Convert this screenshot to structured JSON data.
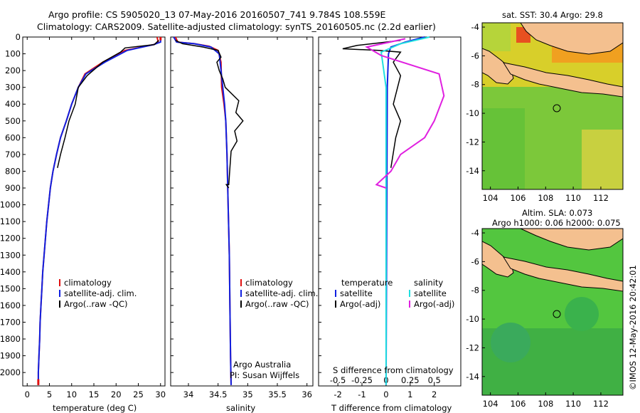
{
  "title": {
    "line1": "Argo profile: CS 5905020_13 07-May-2016 20160507_741 9.784S 108.559E",
    "line2": "Climatology: CARS2009. Satellite-adjusted climatology: synTS_20160505.nc (2.2d earlier)"
  },
  "colors": {
    "climatology": "#e01010",
    "satellite": "#1020e0",
    "argo": "#000000",
    "satellite_s": "#20e0e0",
    "argo_s": "#e020e0"
  },
  "chart_data": [
    {
      "type": "line",
      "panel": "temperature",
      "xlabel": "temperature (deg C)",
      "ylabel": "",
      "xlim": [
        -1,
        31
      ],
      "ylim": [
        2080,
        0
      ],
      "xticks": [
        0,
        5,
        10,
        15,
        20,
        25,
        30
      ],
      "yticks": [
        0,
        100,
        200,
        300,
        400,
        500,
        600,
        700,
        800,
        900,
        1000,
        1100,
        1200,
        1300,
        1400,
        1500,
        1600,
        1700,
        1800,
        1900,
        2000
      ],
      "legend": [
        "climatology",
        "satellite-adj. clim.",
        "Argo(..raw -QC)"
      ],
      "legend_position": "bottom-center",
      "series": [
        {
          "name": "climatology",
          "color": "#e01010",
          "points": [
            [
              29.2,
              0
            ],
            [
              29.5,
              30
            ],
            [
              28.5,
              45
            ],
            [
              22,
              80
            ],
            [
              17,
              150
            ],
            [
              13,
              220
            ],
            [
              11.5,
              300
            ],
            [
              10,
              400
            ],
            [
              8.8,
              500
            ],
            [
              7.5,
              600
            ],
            [
              6.6,
              700
            ],
            [
              5.8,
              800
            ],
            [
              5.2,
              900
            ],
            [
              4.8,
              1000
            ],
            [
              4.4,
              1100
            ],
            [
              4.1,
              1200
            ],
            [
              3.8,
              1300
            ],
            [
              3.5,
              1400
            ],
            [
              3.3,
              1500
            ],
            [
              3.1,
              1600
            ],
            [
              2.9,
              1700
            ],
            [
              2.8,
              1800
            ],
            [
              2.65,
              1900
            ],
            [
              2.5,
              2000
            ],
            [
              2.5,
              2075
            ]
          ]
        },
        {
          "name": "satellite-adj. clim.",
          "color": "#1020e0",
          "points": [
            [
              30,
              0
            ],
            [
              30,
              30
            ],
            [
              28.5,
              45
            ],
            [
              22.5,
              80
            ],
            [
              17.5,
              150
            ],
            [
              13.2,
              220
            ],
            [
              11.5,
              300
            ],
            [
              10,
              400
            ],
            [
              8.8,
              500
            ],
            [
              7.5,
              600
            ],
            [
              6.6,
              700
            ],
            [
              5.8,
              800
            ],
            [
              5.2,
              900
            ],
            [
              4.8,
              1000
            ],
            [
              4.4,
              1100
            ],
            [
              4.1,
              1200
            ],
            [
              3.8,
              1300
            ],
            [
              3.5,
              1400
            ],
            [
              3.3,
              1500
            ],
            [
              3.1,
              1600
            ],
            [
              2.9,
              1700
            ],
            [
              2.8,
              1800
            ],
            [
              2.65,
              1900
            ],
            [
              2.5,
              2000
            ],
            [
              2.5,
              2075
            ]
          ]
        },
        {
          "name": "Argo(..raw -QC)",
          "color": "#000000",
          "points": [
            [
              29.6,
              20
            ],
            [
              28.6,
              45
            ],
            [
              22,
              65
            ],
            [
              21,
              90
            ],
            [
              17,
              150
            ],
            [
              13.5,
              230
            ],
            [
              11.5,
              300
            ],
            [
              10.8,
              400
            ],
            [
              9.4,
              500
            ],
            [
              8.5,
              600
            ],
            [
              7.5,
              700
            ],
            [
              6.8,
              780
            ]
          ]
        }
      ]
    },
    {
      "type": "line",
      "panel": "salinity",
      "xlabel": "salinity",
      "ylabel": "",
      "xlim": [
        33.7,
        36.1
      ],
      "ylim": [
        2080,
        0
      ],
      "xticks": [
        34,
        34.5,
        35,
        35.5,
        36
      ],
      "legend": [
        "climatology",
        "satellite-adj. clim.",
        "Argo(..raw -QC)"
      ],
      "legend_position": "bottom-right",
      "annotation": {
        "line1": "Argo Australia",
        "line2": "PI: Susan Wijffels"
      },
      "series": [
        {
          "name": "climatology",
          "color": "#e01010",
          "points": [
            [
              33.78,
              0
            ],
            [
              33.82,
              30
            ],
            [
              34.1,
              40
            ],
            [
              34.35,
              55
            ],
            [
              34.5,
              80
            ],
            [
              34.55,
              150
            ],
            [
              34.56,
              300
            ],
            [
              34.6,
              400
            ],
            [
              34.63,
              500
            ],
            [
              34.65,
              700
            ],
            [
              34.67,
              1000
            ],
            [
              34.69,
              1300
            ],
            [
              34.7,
              1600
            ],
            [
              34.71,
              1900
            ],
            [
              34.72,
              2075
            ]
          ]
        },
        {
          "name": "satellite-adj. clim.",
          "color": "#1020e0",
          "points": [
            [
              33.75,
              0
            ],
            [
              33.8,
              30
            ],
            [
              34.1,
              40
            ],
            [
              34.38,
              60
            ],
            [
              34.52,
              100
            ],
            [
              34.55,
              200
            ],
            [
              34.58,
              300
            ],
            [
              34.61,
              400
            ],
            [
              34.63,
              500
            ],
            [
              34.65,
              700
            ],
            [
              34.67,
              1000
            ],
            [
              34.69,
              1300
            ],
            [
              34.7,
              1600
            ],
            [
              34.71,
              1900
            ],
            [
              34.72,
              2075
            ]
          ]
        },
        {
          "name": "Argo(..raw -QC)",
          "color": "#000000",
          "points": [
            [
              33.78,
              20
            ],
            [
              33.9,
              40
            ],
            [
              34.25,
              60
            ],
            [
              34.5,
              80
            ],
            [
              34.55,
              120
            ],
            [
              34.48,
              150
            ],
            [
              34.52,
              200
            ],
            [
              34.58,
              250
            ],
            [
              34.62,
              300
            ],
            [
              34.85,
              380
            ],
            [
              34.8,
              450
            ],
            [
              34.92,
              500
            ],
            [
              34.78,
              560
            ],
            [
              34.82,
              620
            ],
            [
              34.72,
              680
            ],
            [
              34.7,
              780
            ],
            [
              34.68,
              880
            ],
            [
              34.64,
              880
            ],
            [
              34.68,
              900
            ]
          ]
        }
      ]
    },
    {
      "type": "line",
      "panel": "differences",
      "xlabel": "T difference from climatology",
      "xlabel_top": "S difference from climatology",
      "xlim": [
        -2.8,
        3.1
      ],
      "ylim": [
        2080,
        0
      ],
      "xticks_T": [
        -2,
        -1,
        0,
        1,
        2
      ],
      "xticks_S": [
        "-0.5",
        "-0.25",
        "0",
        "0.25",
        "0.5"
      ],
      "legend": {
        "temperature_header": "temperature",
        "salinity_header": "salinity",
        "entries": [
          "satellite",
          "Argo(-adj)",
          "satellite",
          "Argo(-adj)"
        ]
      },
      "legend_position": "bottom-center",
      "series": [
        {
          "name": "satellite",
          "quantity": "temperature",
          "color": "#1020e0",
          "points": [
            [
              1.6,
              0
            ],
            [
              0.8,
              30
            ],
            [
              0.2,
              60
            ],
            [
              0.1,
              100
            ],
            [
              0.05,
              300
            ],
            [
              0,
              2075
            ]
          ]
        },
        {
          "name": "Argo(-adj)",
          "quantity": "temperature",
          "color": "#000000",
          "points": [
            [
              0.6,
              20
            ],
            [
              -1.2,
              50
            ],
            [
              -1.8,
              70
            ],
            [
              -0.3,
              80
            ],
            [
              0.6,
              90
            ],
            [
              0.3,
              150
            ],
            [
              0.6,
              230
            ],
            [
              0.3,
              400
            ],
            [
              0.6,
              500
            ],
            [
              0.4,
              600
            ],
            [
              0.2,
              780
            ]
          ]
        },
        {
          "name": "satellite",
          "quantity": "salinity",
          "color": "#20e0e0",
          "points": [
            [
              0.45,
              0
            ],
            [
              0.15,
              40
            ],
            [
              -0.05,
              90
            ],
            [
              0.0,
              300
            ],
            [
              0.0,
              2075
            ]
          ]
        },
        {
          "name": "Argo(-adj)",
          "quantity": "salinity",
          "color": "#e020e0",
          "points": [
            [
              0.2,
              10
            ],
            [
              -0.2,
              60
            ],
            [
              -0.05,
              110
            ],
            [
              0.55,
              220
            ],
            [
              0.6,
              350
            ],
            [
              0.5,
              500
            ],
            [
              0.4,
              600
            ],
            [
              0.15,
              700
            ],
            [
              0.05,
              800
            ],
            [
              -0.1,
              880
            ],
            [
              0.0,
              900
            ]
          ]
        }
      ]
    },
    {
      "type": "heatmap",
      "panel": "sst_map",
      "title": "sat. SST: 30.4  Argo: 29.8",
      "xlim": [
        103.4,
        113.6
      ],
      "ylim": [
        -15.3,
        -3.7
      ],
      "xticks": [
        104,
        106,
        108,
        110,
        112
      ],
      "yticks": [
        -4,
        -6,
        -8,
        -10,
        -12,
        -14
      ],
      "marker": {
        "lon": 108.559,
        "lat": -9.784
      }
    },
    {
      "type": "heatmap",
      "panel": "sla_map",
      "title_line1": "Altim. SLA: 0.073",
      "title_line2": "Argo h1000: 0.06 h2000: 0.075",
      "xlim": [
        103.4,
        113.6
      ],
      "ylim": [
        -15.3,
        -3.7
      ],
      "xticks": [
        104,
        106,
        108,
        110,
        112
      ],
      "yticks": [
        -4,
        -6,
        -8,
        -10,
        -12,
        -14
      ],
      "marker": {
        "lon": 108.559,
        "lat": -9.784
      }
    }
  ],
  "credit": "©IMOS 12-May-2016 20:42:01"
}
